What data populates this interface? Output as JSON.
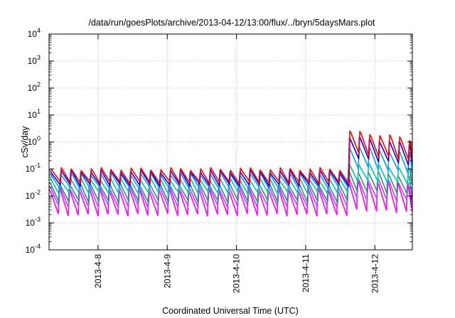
{
  "chart_data": {
    "type": "line",
    "title": "/data/run/goesPlots/archive/2013-04-12/13:00/flux/../bryn/5daysMars.plot",
    "xlabel": "Coordinated Universal Time (UTC)",
    "ylabel": "cSv/day",
    "x_range": [
      "2013-04-07T07:00",
      "2013-04-12T13:00"
    ],
    "x_ticks": [
      "2013-4-8",
      "2013-4-9",
      "2013-4-10",
      "2013-4-11",
      "2013-4-12"
    ],
    "y_scale": "log",
    "ylim": [
      0.0001,
      10000
    ],
    "y_ticks": [
      {
        "base": "10",
        "exp": "-4"
      },
      {
        "base": "10",
        "exp": "-3"
      },
      {
        "base": "10",
        "exp": "-2"
      },
      {
        "base": "10",
        "exp": "-1"
      },
      {
        "base": "10",
        "exp": "0"
      },
      {
        "base": "10",
        "exp": "1"
      },
      {
        "base": "10",
        "exp": "2"
      },
      {
        "base": "10",
        "exp": "3"
      },
      {
        "base": "10",
        "exp": "4"
      }
    ],
    "grid": true,
    "legend": "none",
    "sawtooth_cycle_hours": 3.45,
    "event_onset": "2013-04-11T12:00",
    "series": [
      {
        "color": "#ff0000",
        "peak_before": 0.1,
        "trough_before": 0.03,
        "peak_after": 2.6,
        "trough_after": 0.35
      },
      {
        "color": "#0000ff",
        "peak_before": 0.085,
        "trough_before": 0.025,
        "peak_after": 1.6,
        "trough_after": 0.25
      },
      {
        "color": "#00a0ff",
        "peak_before": 0.07,
        "trough_before": 0.02,
        "peak_after": 0.75,
        "trough_after": 0.12
      },
      {
        "color": "#00c8a0",
        "peak_before": 0.045,
        "trough_before": 0.012,
        "peak_after": 0.18,
        "trough_after": 0.04
      },
      {
        "color": "#3a8a8a",
        "peak_before": 0.028,
        "trough_before": 0.006,
        "peak_after": 0.09,
        "trough_after": 0.015
      },
      {
        "color": "#c83cff",
        "peak_before": 0.022,
        "trough_before": 0.004,
        "peak_after": 0.05,
        "trough_after": 0.008
      },
      {
        "color": "#ff00ff",
        "peak_before": 0.018,
        "trough_before": 0.002,
        "peak_after": 0.04,
        "trough_after": 0.003
      }
    ]
  }
}
